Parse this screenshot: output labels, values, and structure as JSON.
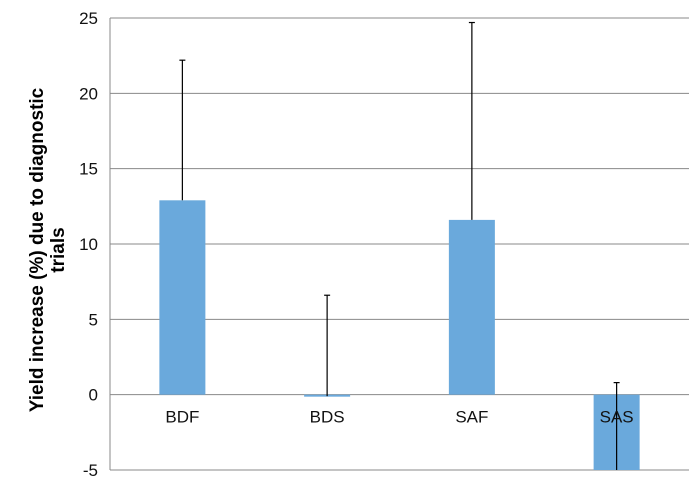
{
  "chart_data": {
    "type": "bar",
    "title": "",
    "xlabel": "",
    "ylabel_lines": [
      "Yield increase (%) due to diagnostic",
      "trials"
    ],
    "categories": [
      "BDF",
      "BDS",
      "SAF",
      "SAS"
    ],
    "values": [
      12.9,
      -0.1,
      11.6,
      -5.0
    ],
    "error_upper": [
      22.2,
      6.6,
      24.7,
      0.8
    ],
    "ylim": [
      -5,
      25
    ],
    "yticks": [
      -5,
      0,
      5,
      10,
      15,
      20,
      25
    ],
    "ytick_labels": [
      "-5",
      "0",
      "5",
      "10",
      "15",
      "20",
      "25"
    ],
    "grid": true,
    "bar_color": "#6aa9dc",
    "grid_color": "#888888",
    "error_color": "#000000"
  }
}
